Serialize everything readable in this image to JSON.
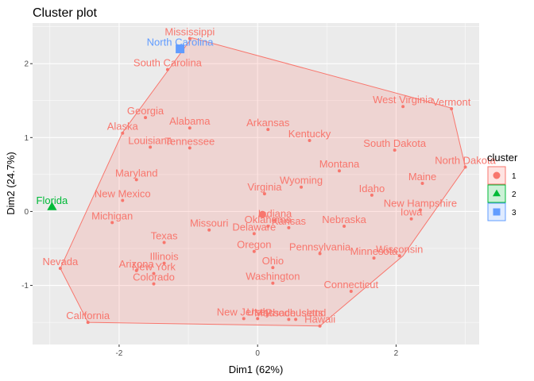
{
  "chart_data": {
    "type": "scatter",
    "title": "Cluster plot",
    "xlabel": "Dim1 (62%)",
    "ylabel": "Dim2 (24.7%)",
    "xlim": [
      -3.25,
      3.2
    ],
    "ylim": [
      -1.8,
      2.55
    ],
    "xticks": [
      -2,
      0,
      2
    ],
    "yticks": [
      -1,
      0,
      1,
      2
    ],
    "grid": true,
    "legend": {
      "title": "cluster",
      "placement": "right",
      "entries": [
        {
          "label": "1",
          "color": "#F8766D",
          "shape": "circle"
        },
        {
          "label": "2",
          "color": "#00BA38",
          "shape": "triangle"
        },
        {
          "label": "3",
          "color": "#619CFF",
          "shape": "square"
        }
      ]
    },
    "clusters": [
      {
        "name": "1",
        "color": "#F8766D",
        "hull": [
          {
            "x": -0.95,
            "y": 2.35
          },
          {
            "x": 2.8,
            "y": 1.4
          },
          {
            "x": 3.0,
            "y": 0.6
          },
          {
            "x": 2.1,
            "y": -0.6
          },
          {
            "x": 0.9,
            "y": -1.55
          },
          {
            "x": -2.45,
            "y": -1.5
          },
          {
            "x": -2.85,
            "y": -0.77
          },
          {
            "x": -1.95,
            "y": 1.07
          },
          {
            "x": -1.3,
            "y": 1.9
          }
        ],
        "centroid": {
          "x": 0.07,
          "y": -0.04
        },
        "points": [
          {
            "label": "Mississippi",
            "x": -0.98,
            "y": 2.34
          },
          {
            "label": "South Carolina",
            "x": -1.3,
            "y": 1.92
          },
          {
            "label": "Georgia",
            "x": -1.62,
            "y": 1.27
          },
          {
            "label": "Alabama",
            "x": -0.98,
            "y": 1.13
          },
          {
            "label": "Alaska",
            "x": -1.95,
            "y": 1.06
          },
          {
            "label": "Louisiana",
            "x": -1.55,
            "y": 0.87
          },
          {
            "label": "Tennessee",
            "x": -0.98,
            "y": 0.86
          },
          {
            "label": "Arkansas",
            "x": 0.15,
            "y": 1.11
          },
          {
            "label": "Kentucky",
            "x": 0.75,
            "y": 0.96
          },
          {
            "label": "West Virginia",
            "x": 2.1,
            "y": 1.42
          },
          {
            "label": "Vermont",
            "x": 2.8,
            "y": 1.39
          },
          {
            "label": "South Dakota",
            "x": 1.98,
            "y": 0.83
          },
          {
            "label": "North Dakota",
            "x": 3.0,
            "y": 0.6
          },
          {
            "label": "Montana",
            "x": 1.18,
            "y": 0.55
          },
          {
            "label": "Maine",
            "x": 2.38,
            "y": 0.38
          },
          {
            "label": "Wyoming",
            "x": 0.63,
            "y": 0.33
          },
          {
            "label": "Idaho",
            "x": 1.65,
            "y": 0.22
          },
          {
            "label": "Maryland",
            "x": -1.75,
            "y": 0.43
          },
          {
            "label": "Virginia",
            "x": 0.1,
            "y": 0.24
          },
          {
            "label": "New Mexico",
            "x": -1.95,
            "y": 0.15
          },
          {
            "label": "New Hampshire",
            "x": 2.35,
            "y": 0.02
          },
          {
            "label": "Iowa",
            "x": 2.22,
            "y": -0.1
          },
          {
            "label": "Michigan",
            "x": -2.1,
            "y": -0.15
          },
          {
            "label": "Indiana",
            "x": 0.25,
            "y": -0.12
          },
          {
            "label": "Oklahoma",
            "x": 0.15,
            "y": -0.2
          },
          {
            "label": "Kansas",
            "x": 0.45,
            "y": -0.22
          },
          {
            "label": "Nebraska",
            "x": 1.25,
            "y": -0.2
          },
          {
            "label": "Missouri",
            "x": -0.7,
            "y": -0.25
          },
          {
            "label": "Delaware",
            "x": -0.05,
            "y": -0.3
          },
          {
            "label": "Texas",
            "x": -1.35,
            "y": -0.42
          },
          {
            "label": "Oregon",
            "x": -0.05,
            "y": -0.54
          },
          {
            "label": "Pennsylvania",
            "x": 0.9,
            "y": -0.57
          },
          {
            "label": "Minnesota",
            "x": 1.68,
            "y": -0.63
          },
          {
            "label": "Wisconsin",
            "x": 2.05,
            "y": -0.6
          },
          {
            "label": "Illinois",
            "x": -1.35,
            "y": -0.7
          },
          {
            "label": "Ohio",
            "x": 0.22,
            "y": -0.76
          },
          {
            "label": "Arizona",
            "x": -1.75,
            "y": -0.8
          },
          {
            "label": "New York",
            "x": -1.5,
            "y": -0.84
          },
          {
            "label": "Nevada",
            "x": -2.85,
            "y": -0.77
          },
          {
            "label": "Colorado",
            "x": -1.5,
            "y": -0.98
          },
          {
            "label": "Washington",
            "x": 0.22,
            "y": -0.97
          },
          {
            "label": "Connecticut",
            "x": 1.35,
            "y": -1.08
          },
          {
            "label": "California",
            "x": -2.45,
            "y": -1.5
          },
          {
            "label": "New Jersey",
            "x": -0.2,
            "y": -1.45
          },
          {
            "label": "Utah",
            "x": 0.0,
            "y": -1.45
          },
          {
            "label": "Massachusetts",
            "x": 0.45,
            "y": -1.46
          },
          {
            "label": "Rhode Island",
            "x": 0.55,
            "y": -1.46
          },
          {
            "label": "Hawaii",
            "x": 0.9,
            "y": -1.55
          }
        ]
      },
      {
        "name": "2",
        "color": "#00BA38",
        "centroid": {
          "x": -2.97,
          "y": 0.06
        },
        "points": [
          {
            "label": "Florida",
            "x": -2.97,
            "y": 0.06
          }
        ]
      },
      {
        "name": "3",
        "color": "#619CFF",
        "centroid": {
          "x": -1.12,
          "y": 2.2
        },
        "points": [
          {
            "label": "North Carolina",
            "x": -1.12,
            "y": 2.2
          }
        ]
      }
    ]
  }
}
